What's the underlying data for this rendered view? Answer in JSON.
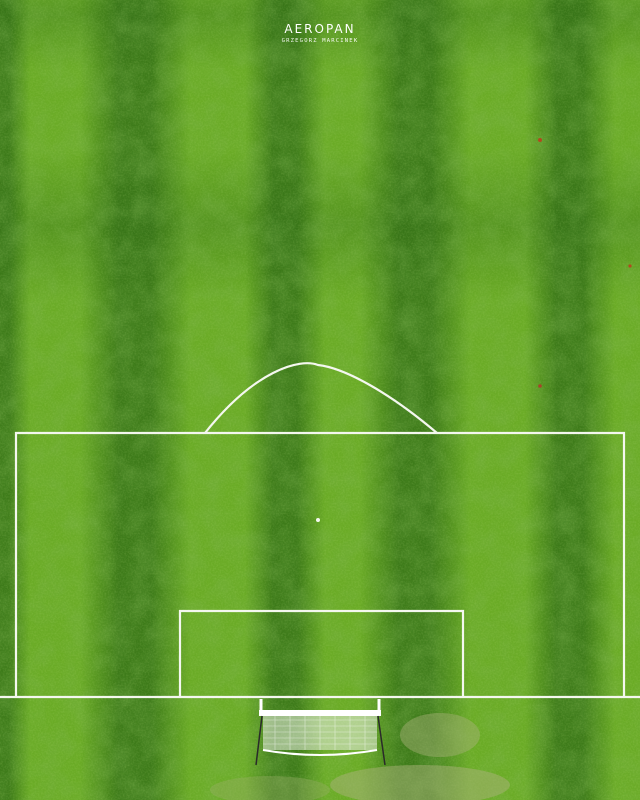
{
  "watermark": {
    "title": "AEROPAN",
    "subtitle": "GRZEGORZ MARCINEK"
  },
  "scene": {
    "subject": "aerial view of football pitch penalty area with goal",
    "colors": {
      "grass_light": "#7cbf2c",
      "grass_mid": "#5c9e22",
      "grass_dark": "#2f6b16",
      "line": "#f4f7ef",
      "worn_patch": "#a9b27a"
    },
    "stripe_count": 5
  }
}
